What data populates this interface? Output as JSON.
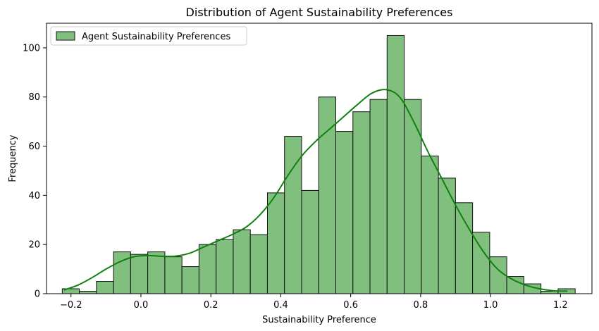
{
  "chart_data": {
    "type": "bar",
    "title": "Distribution of Agent Sustainability Preferences",
    "xlabel": "Sustainability Preference",
    "ylabel": "Frequency",
    "xlim": [
      -0.27,
      1.29
    ],
    "ylim": [
      0,
      110
    ],
    "xticks": [
      -0.2,
      0.0,
      0.2,
      0.4,
      0.6,
      0.8,
      1.0,
      1.2
    ],
    "xtick_labels": [
      "−0.2",
      "0.0",
      "0.2",
      "0.4",
      "0.6",
      "0.8",
      "1.0",
      "1.2"
    ],
    "yticks": [
      0,
      20,
      40,
      60,
      80,
      100
    ],
    "ytick_labels": [
      "0",
      "20",
      "40",
      "60",
      "80",
      "100"
    ],
    "bin_start": -0.225,
    "bin_width": 0.0489,
    "series": [
      {
        "name": "Agent Sustainability Preferences",
        "type": "histogram",
        "values": [
          2,
          1,
          5,
          17,
          16,
          17,
          15,
          11,
          20,
          22,
          26,
          24,
          41,
          64,
          42,
          80,
          66,
          74,
          79,
          105,
          79,
          56,
          47,
          37,
          25,
          15,
          7,
          4,
          1,
          2
        ]
      }
    ],
    "kde": {
      "x": [
        -0.22,
        -0.18,
        -0.14,
        -0.1,
        -0.06,
        -0.02,
        0.02,
        0.06,
        0.1,
        0.14,
        0.18,
        0.22,
        0.26,
        0.3,
        0.34,
        0.38,
        0.42,
        0.46,
        0.5,
        0.54,
        0.58,
        0.62,
        0.66,
        0.7,
        0.74,
        0.78,
        0.82,
        0.86,
        0.9,
        0.94,
        0.98,
        1.02,
        1.06,
        1.1,
        1.14,
        1.18,
        1.22
      ],
      "y": [
        1.5,
        3.5,
        6.5,
        10,
        13,
        15,
        15.5,
        15.2,
        15.3,
        16.5,
        19,
        21.5,
        24,
        27,
        32,
        39,
        48,
        56,
        62,
        67,
        72,
        77,
        81.5,
        83,
        80,
        70,
        58,
        47,
        36,
        26,
        17,
        10,
        6,
        3.5,
        2,
        1.2,
        1
      ]
    },
    "legend": {
      "position": "top-left"
    },
    "grid": false,
    "colors": {
      "bar_fill": "#80bf7d",
      "bar_edge": "#111111",
      "kde_line": "#118011"
    }
  }
}
